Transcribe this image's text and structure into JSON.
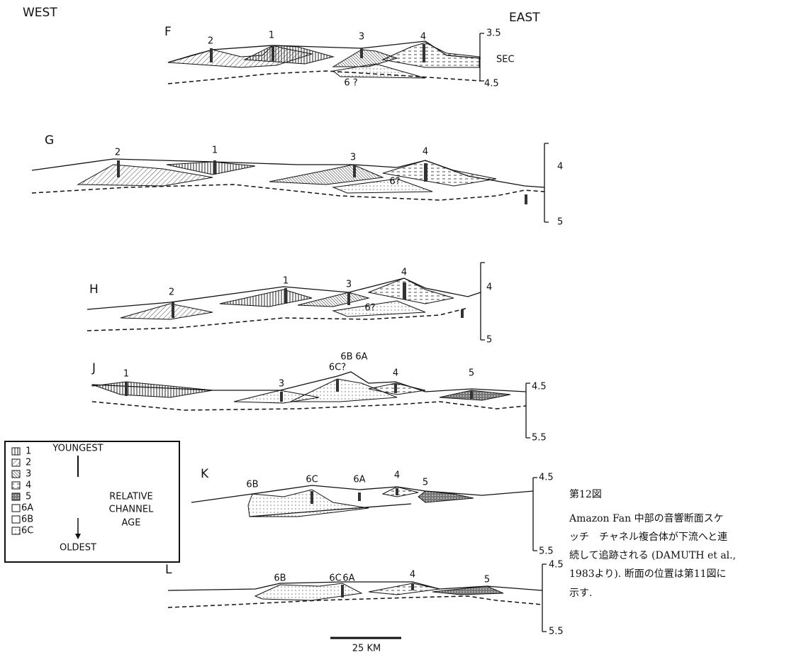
{
  "header": {
    "west": "WEST",
    "east": "EAST"
  },
  "profiles": [
    {
      "name": "F",
      "channels": [
        "2",
        "1",
        "3",
        "4",
        "6 ?"
      ],
      "depth_labels": [
        "3.5",
        "SEC",
        "4.5"
      ]
    },
    {
      "name": "G",
      "channels": [
        "2",
        "1",
        "3",
        "4",
        "6?"
      ],
      "depth_labels": [
        "4",
        "5"
      ]
    },
    {
      "name": "H",
      "channels": [
        "2",
        "1",
        "3",
        "4",
        "6?"
      ],
      "depth_labels": [
        "4",
        "5"
      ]
    },
    {
      "name": "J",
      "channels": [
        "1",
        "3",
        "6C?",
        "6B",
        "6A",
        "4",
        "5"
      ],
      "depth_labels": [
        "4.5",
        "5.5"
      ]
    },
    {
      "name": "K",
      "channels": [
        "6B",
        "6C",
        "6A",
        "4",
        "5"
      ],
      "depth_labels": [
        "4.5",
        "5.5"
      ]
    },
    {
      "name": "L",
      "channels": [
        "6B",
        "6C",
        "6A",
        "4",
        "5"
      ],
      "depth_labels": [
        "4.5",
        "5.5"
      ]
    }
  ],
  "legend": {
    "items": [
      "1",
      "2",
      "3",
      "4",
      "5",
      "6A",
      "6B",
      "6C"
    ],
    "youngest": "YOUNGEST",
    "middle": [
      "RELATIVE",
      "CHANNEL",
      "AGE"
    ],
    "oldest": "OLDEST"
  },
  "scale_bar": "25 KM",
  "caption": {
    "title": "第12図",
    "lines": [
      "Amazon Fan 中部の音響断面スケ",
      "ッチ　チャネル複合体が下流へと連",
      "続して追跡される (DAMUTH et al.,",
      "1983より). 断面の位置は第11図に",
      "示す."
    ]
  }
}
